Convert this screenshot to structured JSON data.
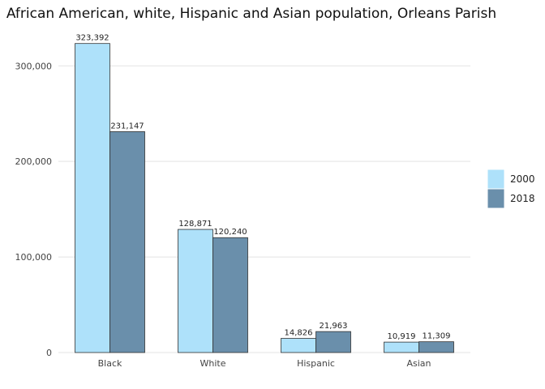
{
  "chart_data": {
    "type": "bar",
    "title": "African American, white, Hispanic and Asian population, Orleans Parish",
    "xlabel": "",
    "ylabel": "",
    "categories": [
      "Black",
      "White",
      "Hispanic",
      "Asian"
    ],
    "series": [
      {
        "name": "2000",
        "color": "#aee1fa",
        "values": [
          323392,
          128871,
          14826,
          10919
        ],
        "labels": [
          "323,392",
          "128,871",
          "14,826",
          "10,919"
        ]
      },
      {
        "name": "2018",
        "color": "#6a8fab",
        "values": [
          231147,
          120240,
          21963,
          11309
        ],
        "labels": [
          "231,147",
          "120,240",
          "21,963",
          "11,309"
        ]
      }
    ],
    "ylim": [
      0,
      335000
    ],
    "yticks": [
      0,
      100000,
      200000,
      300000
    ],
    "ytick_labels": [
      "0",
      "100,000",
      "200,000",
      "300,000"
    ],
    "grid": true,
    "legend_position": "right"
  }
}
